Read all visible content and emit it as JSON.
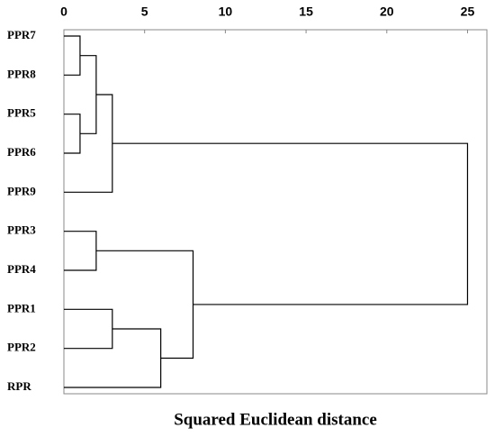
{
  "chart_data": {
    "type": "dendrogram",
    "x_label": "Squared Euclidean distance",
    "labels": [
      "PPR7",
      "PPR8",
      "PPR5",
      "PPR6",
      "PPR9",
      "PPR3",
      "PPR4",
      "PPR1",
      "PPR2",
      "RPR"
    ],
    "merges": [
      {
        "left": 0,
        "right": 1,
        "height": 1
      },
      {
        "left": 2,
        "right": 3,
        "height": 1
      },
      {
        "left": 10,
        "right": 11,
        "height": 2
      },
      {
        "left": 12,
        "right": 4,
        "height": 3
      },
      {
        "left": 5,
        "right": 6,
        "height": 2
      },
      {
        "left": 7,
        "right": 8,
        "height": 3
      },
      {
        "left": 15,
        "right": 9,
        "height": 6
      },
      {
        "left": 14,
        "right": 16,
        "height": 8
      },
      {
        "left": 13,
        "right": 17,
        "height": 25
      }
    ],
    "xlim": [
      0,
      26.2
    ],
    "xticks": [
      0,
      5,
      10,
      15,
      20,
      25
    ]
  }
}
